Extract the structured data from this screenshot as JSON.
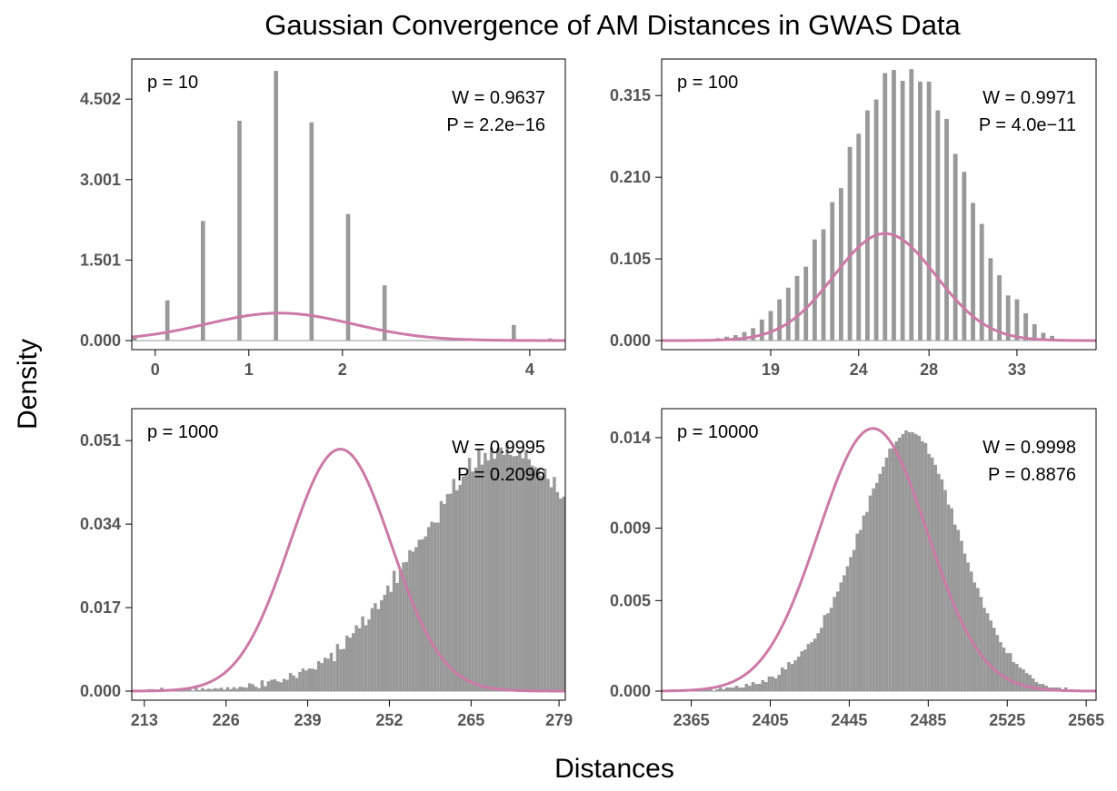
{
  "figure": {
    "title": "Gaussian Convergence of AM Distances in GWAS Data",
    "xlabel": "Distances",
    "ylabel": "Density"
  },
  "colors": {
    "bars": "#999999",
    "curve": "#cc79a7",
    "frame": "#000000",
    "ticks": "#555555"
  },
  "chart_data": [
    {
      "type": "bar",
      "panel_label": "p = 10",
      "w_text": "W = 0.9637",
      "p_text": "P = 2.2e−16",
      "xlim": [
        -0.25,
        4.38
      ],
      "ylim": [
        0,
        5.25
      ],
      "xticks": [
        0,
        1,
        2,
        4
      ],
      "yticks": [
        0.0,
        1.501,
        3.001,
        4.502
      ],
      "ytick_labels": [
        "0.000",
        "1.501",
        "3.001",
        "4.502"
      ],
      "bar_width": 0.045,
      "x": [
        -0.22,
        0.13,
        0.51,
        0.9,
        1.29,
        1.67,
        2.06,
        2.45,
        3.83,
        4.22
      ],
      "values": [
        0.07,
        0.75,
        2.23,
        4.1,
        5.03,
        4.07,
        2.36,
        1.03,
        0.29,
        0.04
      ],
      "normal": {
        "mean": 1.33,
        "sd": 0.78
      }
    },
    {
      "type": "bar",
      "panel_label": "p = 100",
      "w_text": "W = 0.9971",
      "p_text": "P = 4.0e−11",
      "xlim": [
        12.8,
        37.5
      ],
      "ylim": [
        0,
        0.362
      ],
      "xticks": [
        19,
        24,
        28,
        33
      ],
      "yticks": [
        0.0,
        0.105,
        0.21,
        0.315
      ],
      "ytick_labels": [
        "0.000",
        "0.105",
        "0.210",
        "0.315"
      ],
      "bar_width": 0.25,
      "x": [
        15.5,
        16.0,
        16.5,
        17.0,
        17.5,
        18.0,
        18.5,
        19.0,
        19.5,
        20.0,
        20.5,
        21.0,
        21.5,
        22.0,
        22.5,
        23.0,
        23.5,
        24.0,
        24.5,
        25.0,
        25.5,
        26.0,
        26.5,
        27.0,
        27.5,
        28.0,
        28.5,
        29.0,
        29.5,
        30.0,
        30.5,
        31.0,
        31.5,
        32.0,
        32.5,
        33.0,
        33.5,
        34.0,
        34.5,
        35.0
      ],
      "values": [
        0.002,
        0.003,
        0.005,
        0.007,
        0.011,
        0.016,
        0.027,
        0.038,
        0.053,
        0.068,
        0.083,
        0.095,
        0.13,
        0.143,
        0.178,
        0.196,
        0.249,
        0.266,
        0.296,
        0.31,
        0.344,
        0.348,
        0.334,
        0.349,
        0.333,
        0.333,
        0.296,
        0.285,
        0.24,
        0.217,
        0.177,
        0.15,
        0.106,
        0.084,
        0.058,
        0.053,
        0.035,
        0.021,
        0.01,
        0.006
      ],
      "normal": {
        "mean": 25.5,
        "sd": 2.9
      }
    },
    {
      "type": "bar",
      "panel_label": "p = 1000",
      "w_text": "W = 0.9995",
      "p_text": "P = 0.2096",
      "xlim": [
        211,
        280
      ],
      "ylim": [
        0,
        0.0575
      ],
      "xticks": [
        213,
        226,
        239,
        252,
        265,
        279
      ],
      "yticks": [
        0.0,
        0.017,
        0.034,
        0.051
      ],
      "ytick_labels": [
        "0.000",
        "0.017",
        "0.034",
        "0.051"
      ],
      "bar_width": 0.5,
      "x_start": 213.25,
      "x_step": 0.5,
      "values": [
        0.0003,
        0.0004,
        0.0004,
        0.0001,
        0.0003,
        0.0007,
        0.0002,
        0.0001,
        0.0002,
        0.0003,
        0.0001,
        0.0006,
        0.0004,
        0.0004,
        0.0004,
        0.0001,
        0.0007,
        0.0002,
        0.0006,
        0.0003,
        0.0005,
        0.0004,
        0.0006,
        0.0005,
        0.0007,
        0.0003,
        0.0008,
        0.0004,
        0.0008,
        0.0005,
        0.0009,
        0.0008,
        0.0007,
        0.0016,
        0.0014,
        0.0009,
        0.0006,
        0.0022,
        0.001,
        0.002,
        0.0023,
        0.0024,
        0.002,
        0.0018,
        0.0025,
        0.0023,
        0.0037,
        0.0032,
        0.0027,
        0.0039,
        0.0046,
        0.0042,
        0.0046,
        0.0046,
        0.0044,
        0.0061,
        0.0057,
        0.0068,
        0.0066,
        0.0078,
        0.0061,
        0.0096,
        0.0085,
        0.0086,
        0.0113,
        0.0109,
        0.0118,
        0.0134,
        0.0128,
        0.0152,
        0.0134,
        0.0146,
        0.0169,
        0.0179,
        0.0167,
        0.0185,
        0.0196,
        0.0215,
        0.0202,
        0.0245,
        0.022,
        0.0247,
        0.0262,
        0.0263,
        0.0287,
        0.0284,
        0.0293,
        0.0308,
        0.0309,
        0.0315,
        0.0334,
        0.0345,
        0.0343,
        0.0343,
        0.0387,
        0.0381,
        0.0401,
        0.0402,
        0.0432,
        0.0409,
        0.042,
        0.0437,
        0.0443,
        0.0475,
        0.0447,
        0.0455,
        0.0493,
        0.0461,
        0.0485,
        0.047,
        0.0496,
        0.0473,
        0.0494,
        0.0496,
        0.0481,
        0.0505,
        0.0481,
        0.0478,
        0.0479,
        0.0489,
        0.0474,
        0.0491,
        0.0472,
        0.0459,
        0.0456,
        0.0453,
        0.0438,
        0.0453,
        0.0432,
        0.0415,
        0.0436,
        0.0405,
        0.0392,
        0.0396,
        0.0387,
        0.0358,
        0.0363,
        0.0338,
        0.0347,
        0.0345,
        0.0307,
        0.0305,
        0.0301,
        0.0275,
        0.0288,
        0.0271,
        0.0262,
        0.0246,
        0.0243,
        0.0213,
        0.0201,
        0.0206,
        0.0191,
        0.0176,
        0.0181,
        0.0166,
        0.0149,
        0.014,
        0.0133,
        0.0124,
        0.0115,
        0.0114,
        0.0092,
        0.0094,
        0.0086,
        0.0083,
        0.0069,
        0.0058,
        0.0064,
        0.0055,
        0.0051,
        0.0049,
        0.004,
        0.0038,
        0.0031,
        0.0035,
        0.0032,
        0.0027,
        0.0022,
        0.0022,
        0.0015,
        0.0015,
        0.0015,
        0.0016,
        0.001,
        0.0009,
        0.0013,
        0.0007,
        0.0007,
        0.0009,
        0.0008,
        0.0006,
        0.0004,
        0.0007,
        0.0005,
        0.0004,
        0.0005,
        0.0005,
        0.0003,
        0.0003,
        0.0003,
        0.0004,
        0.0001,
        0.0004,
        0.0002,
        0.0005,
        0.0001,
        0.0003,
        0.0001,
        0.0002,
        0.0004,
        0.0004,
        0.0005,
        0.0001,
        0.0003,
        0.0001,
        0.0003,
        0.0004,
        0.0001,
        0.0003,
        0.0004,
        0.0002,
        0.0001,
        0.0004,
        0.0003,
        0.0003,
        0.0001,
        0.0003,
        0.0004,
        0.0002,
        0.0002,
        0.0004,
        0.0001,
        0.0001,
        0.0001,
        0.0004,
        0.0002,
        0.0002,
        0.0003,
        0.0003,
        0.0003,
        0.0004,
        0.0004
      ],
      "normal": {
        "mean": 244.2,
        "sd": 8.1
      }
    },
    {
      "type": "bar",
      "panel_label": "p = 10000",
      "w_text": "W = 0.9998",
      "p_text": "P = 0.8876",
      "xlim": [
        2350,
        2570
      ],
      "ylim": [
        0,
        0.0156
      ],
      "xticks": [
        2365,
        2405,
        2445,
        2485,
        2525,
        2565
      ],
      "yticks": [
        0.0,
        0.005,
        0.009,
        0.014
      ],
      "ytick_labels": [
        "0.000",
        "0.005",
        "0.009",
        "0.014"
      ],
      "bar_width": 1.65,
      "x_start": 2355,
      "x_step": 1.65,
      "values": [
        0.0001,
        0.0001,
        0.0001,
        0.0001,
        0.0001,
        0.0,
        0.0001,
        0.0,
        0.0,
        0.0001,
        0.0001,
        0.0002,
        0.0001,
        0.0,
        0.0001,
        0.0002,
        0.0001,
        0.0002,
        0.0002,
        0.0002,
        0.0003,
        0.0002,
        0.0002,
        0.0004,
        0.0003,
        0.0005,
        0.0004,
        0.0004,
        0.0006,
        0.0005,
        0.0008,
        0.0008,
        0.0007,
        0.0009,
        0.0013,
        0.0012,
        0.0016,
        0.0015,
        0.0017,
        0.0019,
        0.0022,
        0.0023,
        0.0026,
        0.0027,
        0.0029,
        0.0032,
        0.0035,
        0.0042,
        0.0043,
        0.0046,
        0.0052,
        0.0055,
        0.006,
        0.0064,
        0.0069,
        0.0074,
        0.0078,
        0.0087,
        0.0089,
        0.0097,
        0.0099,
        0.0108,
        0.0112,
        0.0115,
        0.012,
        0.0124,
        0.0129,
        0.0134,
        0.0134,
        0.0138,
        0.014,
        0.0142,
        0.0144,
        0.0143,
        0.0143,
        0.0142,
        0.0141,
        0.0138,
        0.0137,
        0.0131,
        0.0129,
        0.0125,
        0.012,
        0.0117,
        0.0111,
        0.0103,
        0.0101,
        0.0092,
        0.0089,
        0.0083,
        0.0076,
        0.0071,
        0.0066,
        0.006,
        0.0057,
        0.0052,
        0.0046,
        0.0043,
        0.0039,
        0.0035,
        0.0031,
        0.0027,
        0.0024,
        0.0021,
        0.0021,
        0.0016,
        0.0015,
        0.0013,
        0.0012,
        0.001,
        0.0009,
        0.0007,
        0.0005,
        0.0004,
        0.0004,
        0.0003,
        0.0002,
        0.0002,
        0.0002,
        0.0002,
        0.0001,
        0.0002,
        0.0001,
        0.0001,
        0.0,
        0.0,
        0.0
      ],
      "normal": {
        "mean": 2457.0,
        "sd": 27.5
      }
    }
  ]
}
